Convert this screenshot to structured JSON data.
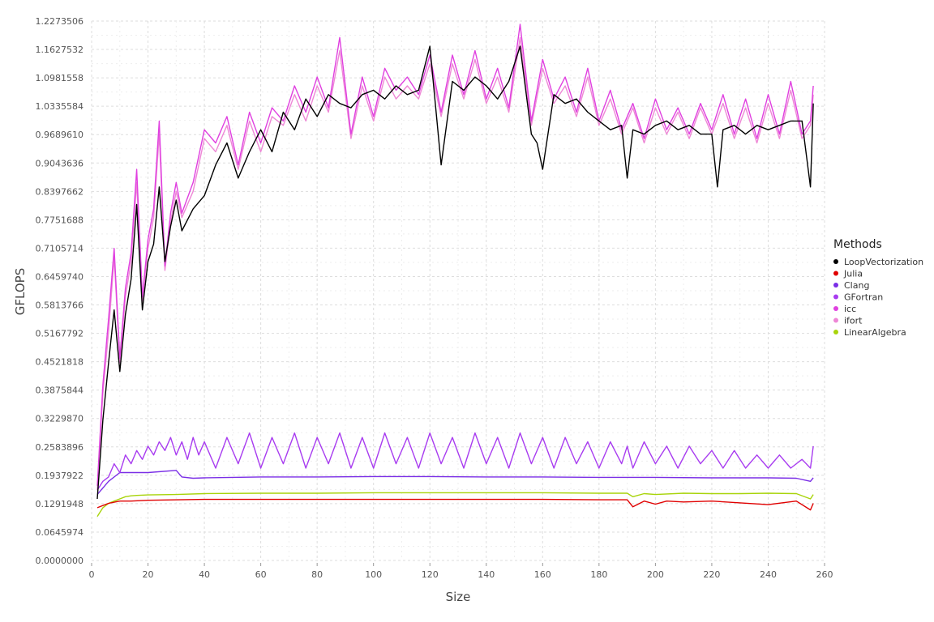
{
  "chart_data": {
    "type": "line",
    "title": "",
    "xlabel": "Size",
    "ylabel": "GFLOPS",
    "xlim": [
      0,
      260
    ],
    "ylim": [
      0,
      1.2273506
    ],
    "x_ticks": [
      "0",
      "20",
      "40",
      "60",
      "80",
      "100",
      "120",
      "140",
      "160",
      "180",
      "200",
      "220",
      "240",
      "260"
    ],
    "y_ticks": [
      "0.0000000",
      "0.0645974",
      "0.1291948",
      "0.1937922",
      "0.2583896",
      "0.3229870",
      "0.3875844",
      "0.4521818",
      "0.5167792",
      "0.5813766",
      "0.6459740",
      "0.7105714",
      "0.7751688",
      "0.8397662",
      "0.9043636",
      "0.9689610",
      "1.0335584",
      "1.0981558",
      "1.1627532",
      "1.2273506"
    ],
    "grid": true,
    "legend": {
      "title": "Methods",
      "placement": "right"
    },
    "series": [
      {
        "name": "LoopVectorization",
        "color": "#000000",
        "x": [
          2,
          4,
          6,
          8,
          10,
          12,
          14,
          16,
          18,
          20,
          22,
          24,
          26,
          28,
          30,
          32,
          36,
          40,
          44,
          48,
          52,
          56,
          60,
          64,
          68,
          72,
          76,
          80,
          84,
          88,
          92,
          96,
          100,
          104,
          108,
          112,
          116,
          120,
          124,
          128,
          132,
          136,
          140,
          144,
          148,
          152,
          156,
          158,
          160,
          164,
          168,
          172,
          176,
          180,
          184,
          188,
          190,
          192,
          196,
          200,
          204,
          208,
          212,
          216,
          220,
          222,
          224,
          228,
          232,
          236,
          240,
          244,
          248,
          252,
          255,
          256
        ],
        "values": [
          0.14,
          0.32,
          0.45,
          0.57,
          0.43,
          0.56,
          0.64,
          0.81,
          0.57,
          0.68,
          0.72,
          0.85,
          0.68,
          0.76,
          0.82,
          0.75,
          0.8,
          0.83,
          0.9,
          0.95,
          0.87,
          0.93,
          0.98,
          0.93,
          1.02,
          0.98,
          1.05,
          1.01,
          1.06,
          1.04,
          1.03,
          1.06,
          1.07,
          1.05,
          1.08,
          1.06,
          1.07,
          1.17,
          0.9,
          1.09,
          1.07,
          1.1,
          1.08,
          1.05,
          1.09,
          1.17,
          0.97,
          0.95,
          0.89,
          1.06,
          1.04,
          1.05,
          1.02,
          1.0,
          0.98,
          0.99,
          0.87,
          0.98,
          0.97,
          0.99,
          1.0,
          0.98,
          0.99,
          0.97,
          0.97,
          0.85,
          0.98,
          0.99,
          0.97,
          0.99,
          0.98,
          0.99,
          1.0,
          1.0,
          0.85,
          1.04
        ]
      },
      {
        "name": "Julia",
        "color": "#e00000",
        "x": [
          2,
          6,
          10,
          14,
          20,
          40,
          80,
          120,
          160,
          180,
          190,
          192,
          196,
          200,
          204,
          210,
          220,
          240,
          250,
          255,
          256
        ],
        "values": [
          0.12,
          0.13,
          0.135,
          0.135,
          0.137,
          0.139,
          0.139,
          0.139,
          0.139,
          0.138,
          0.138,
          0.122,
          0.135,
          0.128,
          0.135,
          0.133,
          0.135,
          0.127,
          0.135,
          0.115,
          0.13
        ]
      },
      {
        "name": "Clang",
        "color": "#7a2ee6",
        "x": [
          2,
          6,
          10,
          14,
          20,
          30,
          32,
          36,
          40,
          60,
          80,
          100,
          120,
          140,
          160,
          180,
          200,
          220,
          240,
          250,
          255,
          256
        ],
        "values": [
          0.15,
          0.18,
          0.2,
          0.2,
          0.2,
          0.205,
          0.19,
          0.187,
          0.188,
          0.19,
          0.19,
          0.191,
          0.191,
          0.19,
          0.19,
          0.189,
          0.189,
          0.188,
          0.188,
          0.187,
          0.18,
          0.188
        ]
      },
      {
        "name": "GFortran",
        "color": "#a83cf0",
        "x": [
          2,
          4,
          6,
          8,
          10,
          12,
          14,
          16,
          18,
          20,
          22,
          24,
          26,
          28,
          30,
          32,
          34,
          36,
          38,
          40,
          44,
          48,
          52,
          56,
          60,
          64,
          68,
          72,
          76,
          80,
          84,
          88,
          92,
          96,
          100,
          104,
          108,
          112,
          116,
          120,
          124,
          128,
          132,
          136,
          140,
          144,
          148,
          152,
          156,
          160,
          164,
          168,
          172,
          176,
          180,
          184,
          188,
          190,
          192,
          196,
          200,
          204,
          208,
          212,
          216,
          220,
          224,
          228,
          232,
          236,
          240,
          244,
          248,
          252,
          255,
          256
        ],
        "values": [
          0.16,
          0.18,
          0.19,
          0.22,
          0.2,
          0.24,
          0.22,
          0.25,
          0.23,
          0.26,
          0.24,
          0.27,
          0.25,
          0.28,
          0.24,
          0.27,
          0.23,
          0.28,
          0.24,
          0.27,
          0.21,
          0.28,
          0.22,
          0.29,
          0.21,
          0.28,
          0.22,
          0.29,
          0.21,
          0.28,
          0.22,
          0.29,
          0.21,
          0.28,
          0.21,
          0.29,
          0.22,
          0.28,
          0.21,
          0.29,
          0.22,
          0.28,
          0.21,
          0.29,
          0.22,
          0.28,
          0.21,
          0.29,
          0.22,
          0.28,
          0.21,
          0.28,
          0.22,
          0.27,
          0.21,
          0.27,
          0.22,
          0.26,
          0.21,
          0.27,
          0.22,
          0.26,
          0.21,
          0.26,
          0.22,
          0.25,
          0.21,
          0.25,
          0.21,
          0.24,
          0.21,
          0.24,
          0.21,
          0.23,
          0.21,
          0.26
        ]
      },
      {
        "name": "icc",
        "color": "#e040e0",
        "x": [
          2,
          4,
          6,
          8,
          10,
          12,
          14,
          16,
          18,
          20,
          22,
          24,
          26,
          28,
          30,
          32,
          36,
          40,
          44,
          48,
          52,
          56,
          60,
          64,
          68,
          72,
          76,
          80,
          84,
          88,
          92,
          96,
          100,
          104,
          108,
          112,
          116,
          120,
          124,
          128,
          132,
          136,
          140,
          144,
          148,
          152,
          156,
          160,
          164,
          168,
          172,
          176,
          180,
          184,
          188,
          192,
          196,
          200,
          204,
          208,
          212,
          216,
          220,
          224,
          228,
          232,
          236,
          240,
          244,
          248,
          252,
          255,
          256
        ],
        "values": [
          0.17,
          0.4,
          0.55,
          0.71,
          0.46,
          0.62,
          0.7,
          0.89,
          0.6,
          0.73,
          0.8,
          1.0,
          0.67,
          0.79,
          0.86,
          0.79,
          0.86,
          0.98,
          0.95,
          1.01,
          0.9,
          1.02,
          0.95,
          1.03,
          1.0,
          1.08,
          1.02,
          1.1,
          1.03,
          1.19,
          0.97,
          1.1,
          1.01,
          1.12,
          1.07,
          1.1,
          1.06,
          1.15,
          1.02,
          1.15,
          1.06,
          1.16,
          1.05,
          1.12,
          1.03,
          1.22,
          1.0,
          1.14,
          1.05,
          1.1,
          1.02,
          1.12,
          1.0,
          1.07,
          0.98,
          1.04,
          0.96,
          1.05,
          0.98,
          1.03,
          0.97,
          1.04,
          0.98,
          1.06,
          0.97,
          1.05,
          0.96,
          1.06,
          0.97,
          1.09,
          0.97,
          1.0,
          1.08
        ]
      },
      {
        "name": "ifort",
        "color": "#ee88d6",
        "x": [
          2,
          4,
          6,
          8,
          10,
          12,
          14,
          16,
          18,
          20,
          22,
          24,
          26,
          28,
          30,
          32,
          36,
          40,
          44,
          48,
          52,
          56,
          60,
          64,
          68,
          72,
          76,
          80,
          84,
          88,
          92,
          96,
          100,
          104,
          108,
          112,
          116,
          120,
          124,
          128,
          132,
          136,
          140,
          144,
          148,
          152,
          156,
          160,
          164,
          168,
          172,
          176,
          180,
          184,
          188,
          192,
          196,
          200,
          204,
          208,
          212,
          216,
          220,
          224,
          228,
          232,
          236,
          240,
          244,
          248,
          252,
          255,
          256
        ],
        "values": [
          0.16,
          0.38,
          0.52,
          0.69,
          0.45,
          0.6,
          0.68,
          0.86,
          0.59,
          0.71,
          0.78,
          0.97,
          0.66,
          0.77,
          0.84,
          0.78,
          0.84,
          0.96,
          0.93,
          0.99,
          0.89,
          1.0,
          0.93,
          1.01,
          0.99,
          1.06,
          1.0,
          1.08,
          1.02,
          1.16,
          0.96,
          1.08,
          1.0,
          1.1,
          1.05,
          1.08,
          1.05,
          1.13,
          1.01,
          1.13,
          1.05,
          1.14,
          1.04,
          1.1,
          1.02,
          1.19,
          0.99,
          1.12,
          1.04,
          1.08,
          1.01,
          1.1,
          0.99,
          1.05,
          0.97,
          1.03,
          0.95,
          1.03,
          0.97,
          1.02,
          0.96,
          1.03,
          0.97,
          1.04,
          0.96,
          1.03,
          0.95,
          1.04,
          0.96,
          1.07,
          0.96,
          0.99,
          1.06
        ]
      },
      {
        "name": "LinearAlgebra",
        "color": "#a8d40a",
        "x": [
          2,
          4,
          6,
          8,
          10,
          12,
          14,
          16,
          20,
          30,
          40,
          60,
          80,
          100,
          120,
          140,
          160,
          180,
          190,
          192,
          196,
          200,
          210,
          220,
          230,
          240,
          250,
          255,
          256
        ],
        "values": [
          0.1,
          0.12,
          0.13,
          0.135,
          0.14,
          0.145,
          0.147,
          0.148,
          0.149,
          0.15,
          0.152,
          0.153,
          0.153,
          0.154,
          0.154,
          0.154,
          0.154,
          0.153,
          0.153,
          0.145,
          0.152,
          0.15,
          0.153,
          0.152,
          0.152,
          0.153,
          0.152,
          0.14,
          0.15
        ]
      }
    ]
  }
}
